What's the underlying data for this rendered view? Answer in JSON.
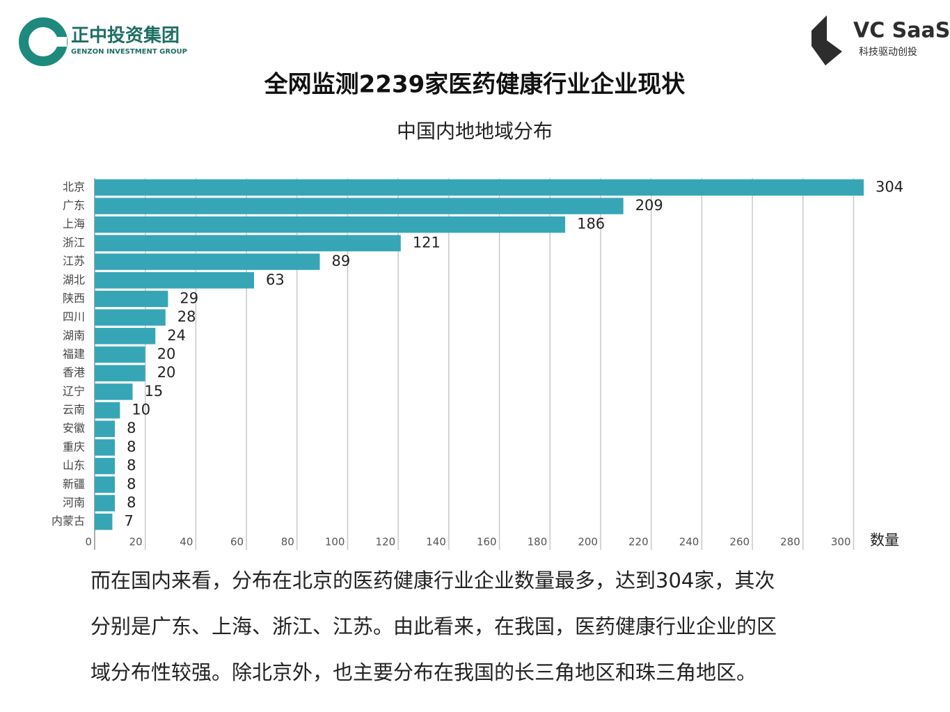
{
  "logos": {
    "left": {
      "name": "正中投资集团",
      "sub": "GENZON INVESTMENT GROUP"
    },
    "right": {
      "name": "VC SaaS",
      "sub": "科技驱动创投"
    }
  },
  "chart_data": {
    "type": "bar",
    "orientation": "horizontal",
    "title": "全网监测2239家医药健康行业企业现状",
    "subtitle": "中国内地地域分布",
    "x_label": "数量",
    "categories": [
      "北京",
      "广东",
      "上海",
      "浙江",
      "江苏",
      "湖北",
      "陕西",
      "四川",
      "湖南",
      "福建",
      "香港",
      "辽宁",
      "云南",
      "安徽",
      "重庆",
      "山东",
      "新疆",
      "河南",
      "内蒙古"
    ],
    "values": [
      304,
      209,
      186,
      121,
      89,
      63,
      29,
      28,
      24,
      20,
      20,
      15,
      10,
      8,
      8,
      8,
      8,
      8,
      7
    ],
    "color": "#36a6b6",
    "xlim": [
      0,
      304
    ],
    "xticks": [
      0,
      20,
      40,
      60,
      80,
      100,
      120,
      140,
      160,
      180,
      200,
      220,
      240,
      260,
      280,
      300
    ],
    "grid": true
  },
  "paragraph": [
    "而在国内来看，分布在北京的医药健康行业企业数量最多，达到304家，其次",
    "分别是广东、上海、浙江、江苏。由此看来，在我国，医药健康行业企业的区",
    "域分布性较强。除北京外，也主要分布在我国的长三角地区和珠三角地区。"
  ]
}
